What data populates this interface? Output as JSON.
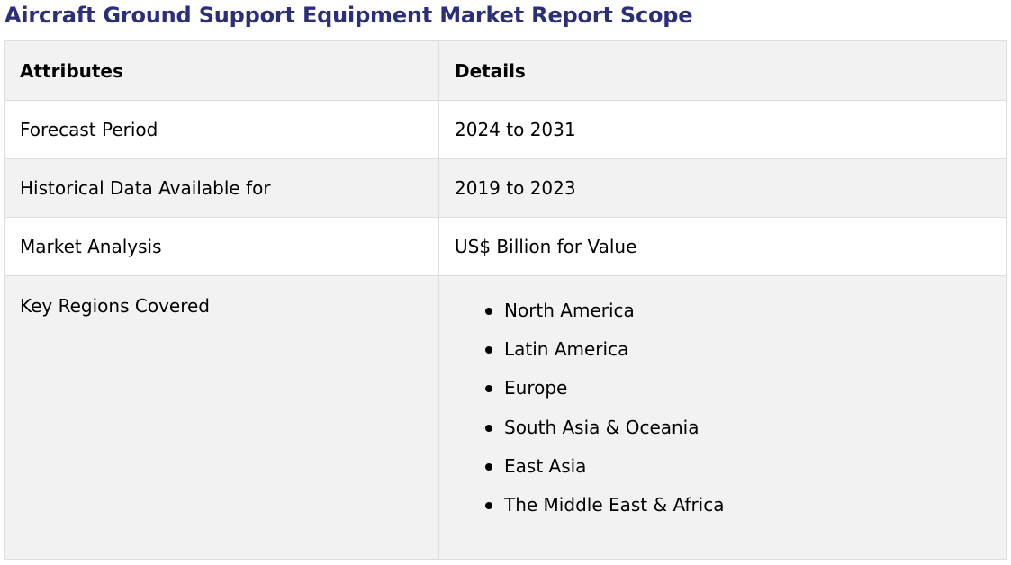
{
  "title": "Aircraft Ground Support Equipment Market Report Scope",
  "colors": {
    "title": "#2b2f7a",
    "row_shade": "#f2f2f2",
    "border": "#dddddd"
  },
  "table": {
    "headers": [
      "Attributes",
      "Details"
    ],
    "rows": [
      {
        "attribute": "Forecast Period",
        "detail": "2024 to 2031"
      },
      {
        "attribute": "Historical Data Available for",
        "detail": "2019 to 2023"
      },
      {
        "attribute": "Market Analysis",
        "detail": "US$ Billion for Value"
      }
    ],
    "regions": {
      "attribute": "Key Regions Covered",
      "items": [
        "North America",
        "Latin America",
        "Europe",
        "South Asia & Oceania",
        "East Asia",
        "The Middle East & Africa"
      ]
    }
  }
}
